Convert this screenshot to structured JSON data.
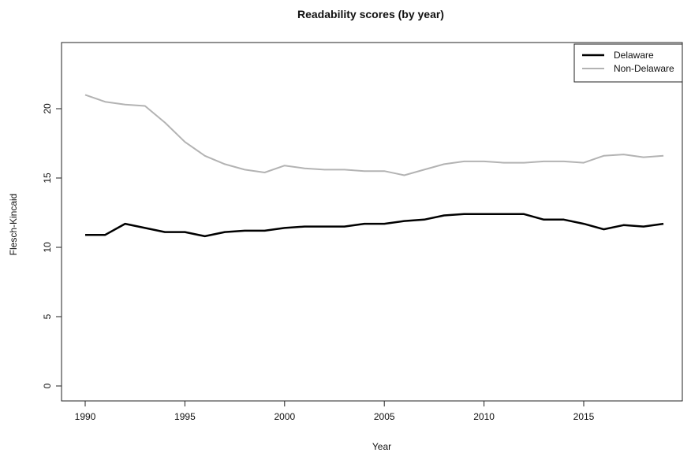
{
  "chart_data": {
    "type": "line",
    "title": "Readability scores (by year)",
    "xlabel": "Year",
    "ylabel": "Flesch-Kincaid",
    "xlim": [
      1989,
      2020
    ],
    "ylim": [
      0,
      24
    ],
    "x_ticks": [
      1990,
      1995,
      2000,
      2005,
      2010,
      2015
    ],
    "y_ticks": [
      0,
      5,
      10,
      15,
      20
    ],
    "grid": false,
    "legend_position": "top-right",
    "x": [
      1990,
      1991,
      1992,
      1993,
      1994,
      1995,
      1996,
      1997,
      1998,
      1999,
      2000,
      2001,
      2002,
      2003,
      2004,
      2005,
      2006,
      2007,
      2008,
      2009,
      2010,
      2011,
      2012,
      2013,
      2014,
      2015,
      2016,
      2017,
      2018,
      2019
    ],
    "series": [
      {
        "name": "Delaware",
        "color": "#000000",
        "values": [
          10.9,
          10.9,
          11.7,
          11.4,
          11.1,
          11.1,
          10.8,
          11.1,
          11.2,
          11.2,
          11.4,
          11.5,
          11.5,
          11.5,
          11.7,
          11.7,
          11.9,
          12.0,
          12.3,
          12.4,
          12.4,
          12.4,
          12.4,
          12.0,
          12.0,
          11.7,
          11.3,
          11.6,
          11.5,
          11.7
        ]
      },
      {
        "name": "Non-Delaware",
        "color": "#b3b3b3",
        "values": [
          21.0,
          20.5,
          20.3,
          20.2,
          19.0,
          17.6,
          16.6,
          16.0,
          15.6,
          15.4,
          15.9,
          15.7,
          15.6,
          15.6,
          15.5,
          15.5,
          15.2,
          15.6,
          16.0,
          16.2,
          16.2,
          16.1,
          16.1,
          16.2,
          16.2,
          16.1,
          16.6,
          16.7,
          16.5,
          16.6
        ]
      }
    ]
  }
}
